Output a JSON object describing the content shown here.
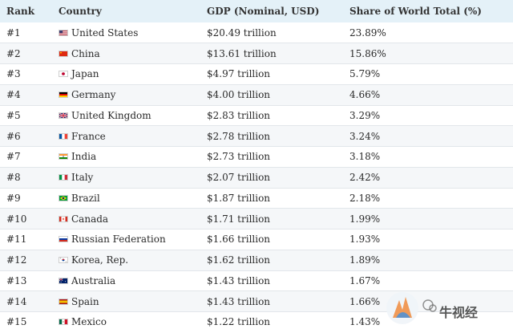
{
  "table": {
    "headers": {
      "rank": "Rank",
      "country": "Country",
      "gdp": "GDP (Nominal, USD)",
      "share": "Share of World Total (%)"
    },
    "rows": [
      {
        "rank": "#1",
        "country": "United States",
        "gdp": "$20.49 trillion",
        "share": "23.89%",
        "flag": "us-flag-icon"
      },
      {
        "rank": "#2",
        "country": "China",
        "gdp": "$13.61 trillion",
        "share": "15.86%",
        "flag": "china-flag-icon"
      },
      {
        "rank": "#3",
        "country": "Japan",
        "gdp": "$4.97 trillion",
        "share": "5.79%",
        "flag": "japan-flag-icon"
      },
      {
        "rank": "#4",
        "country": "Germany",
        "gdp": "$4.00 trillion",
        "share": "4.66%",
        "flag": "germany-flag-icon"
      },
      {
        "rank": "#5",
        "country": "United Kingdom",
        "gdp": "$2.83 trillion",
        "share": "3.29%",
        "flag": "uk-flag-icon"
      },
      {
        "rank": "#6",
        "country": "France",
        "gdp": "$2.78 trillion",
        "share": "3.24%",
        "flag": "france-flag-icon"
      },
      {
        "rank": "#7",
        "country": "India",
        "gdp": "$2.73 trillion",
        "share": "3.18%",
        "flag": "india-flag-icon"
      },
      {
        "rank": "#8",
        "country": "Italy",
        "gdp": "$2.07 trillion",
        "share": "2.42%",
        "flag": "italy-flag-icon"
      },
      {
        "rank": "#9",
        "country": "Brazil",
        "gdp": "$1.87 trillion",
        "share": "2.18%",
        "flag": "brazil-flag-icon"
      },
      {
        "rank": "#10",
        "country": "Canada",
        "gdp": "$1.71 trillion",
        "share": "1.99%",
        "flag": "canada-flag-icon"
      },
      {
        "rank": "#11",
        "country": "Russian Federation",
        "gdp": "$1.66 trillion",
        "share": "1.93%",
        "flag": "russia-flag-icon"
      },
      {
        "rank": "#12",
        "country": "Korea, Rep.",
        "gdp": "$1.62 trillion",
        "share": "1.89%",
        "flag": "south-korea-flag-icon"
      },
      {
        "rank": "#13",
        "country": "Australia",
        "gdp": "$1.43 trillion",
        "share": "1.67%",
        "flag": "australia-flag-icon"
      },
      {
        "rank": "#14",
        "country": "Spain",
        "gdp": "$1.43 trillion",
        "share": "1.66%",
        "flag": "spain-flag-icon"
      },
      {
        "rank": "#15",
        "country": "Mexico",
        "gdp": "$1.22 trillion",
        "share": "1.43%",
        "flag": "mexico-flag-icon"
      }
    ]
  },
  "watermark": {
    "text": "牛视经"
  },
  "colors": {
    "header_bg": "#e4f1f8",
    "row_alt_bg": "#f5f7f9",
    "row_border": "#e2e6ea",
    "text": "#2a2a2a"
  }
}
